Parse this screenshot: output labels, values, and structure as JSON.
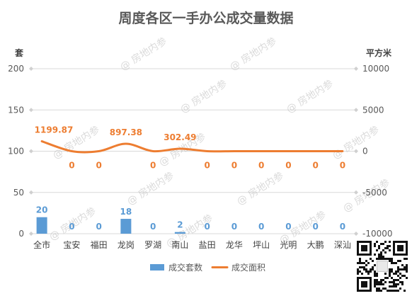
{
  "chart_data": {
    "type": "bar",
    "title": "周度各区一手办公成交量数据",
    "y_left_unit": "套",
    "y_right_unit": "平方米",
    "y_left_ticks": [
      "0",
      "50",
      "100",
      "150",
      "200"
    ],
    "y_right_ticks": [
      "-10000",
      "-5000",
      "0",
      "5000",
      "10000"
    ],
    "ylim_left": [
      0,
      200
    ],
    "ylim_right": [
      -10000,
      10000
    ],
    "categories": [
      "全市",
      "宝安",
      "福田",
      "龙岗",
      "罗湖",
      "南山",
      "盐田",
      "龙华",
      "坪山",
      "光明",
      "大鹏",
      "深汕"
    ],
    "series": [
      {
        "name": "成交套数",
        "type": "bar",
        "axis": "left",
        "color": "#5b9bd5",
        "values": [
          20,
          0,
          0,
          18,
          0,
          2,
          0,
          0,
          0,
          0,
          0,
          0
        ],
        "labels": [
          "20",
          "0",
          "0",
          "18",
          "0",
          "2",
          "0",
          "0",
          "0",
          "0",
          "0",
          "0"
        ]
      },
      {
        "name": "成交面积",
        "type": "line",
        "axis": "right",
        "color": "#ed7d31",
        "values": [
          1199.87,
          0,
          0,
          897.38,
          0,
          302.49,
          0,
          0,
          0,
          0,
          0,
          0
        ],
        "labels": [
          "1199.87",
          "0",
          "0",
          "897.38",
          "0",
          "302.49",
          "0",
          "0",
          "0",
          "0",
          "0",
          "0"
        ]
      }
    ],
    "legend": "bottom",
    "grid": true
  },
  "watermark": "@ 房地内参",
  "qr_icon": "qr-code-icon"
}
